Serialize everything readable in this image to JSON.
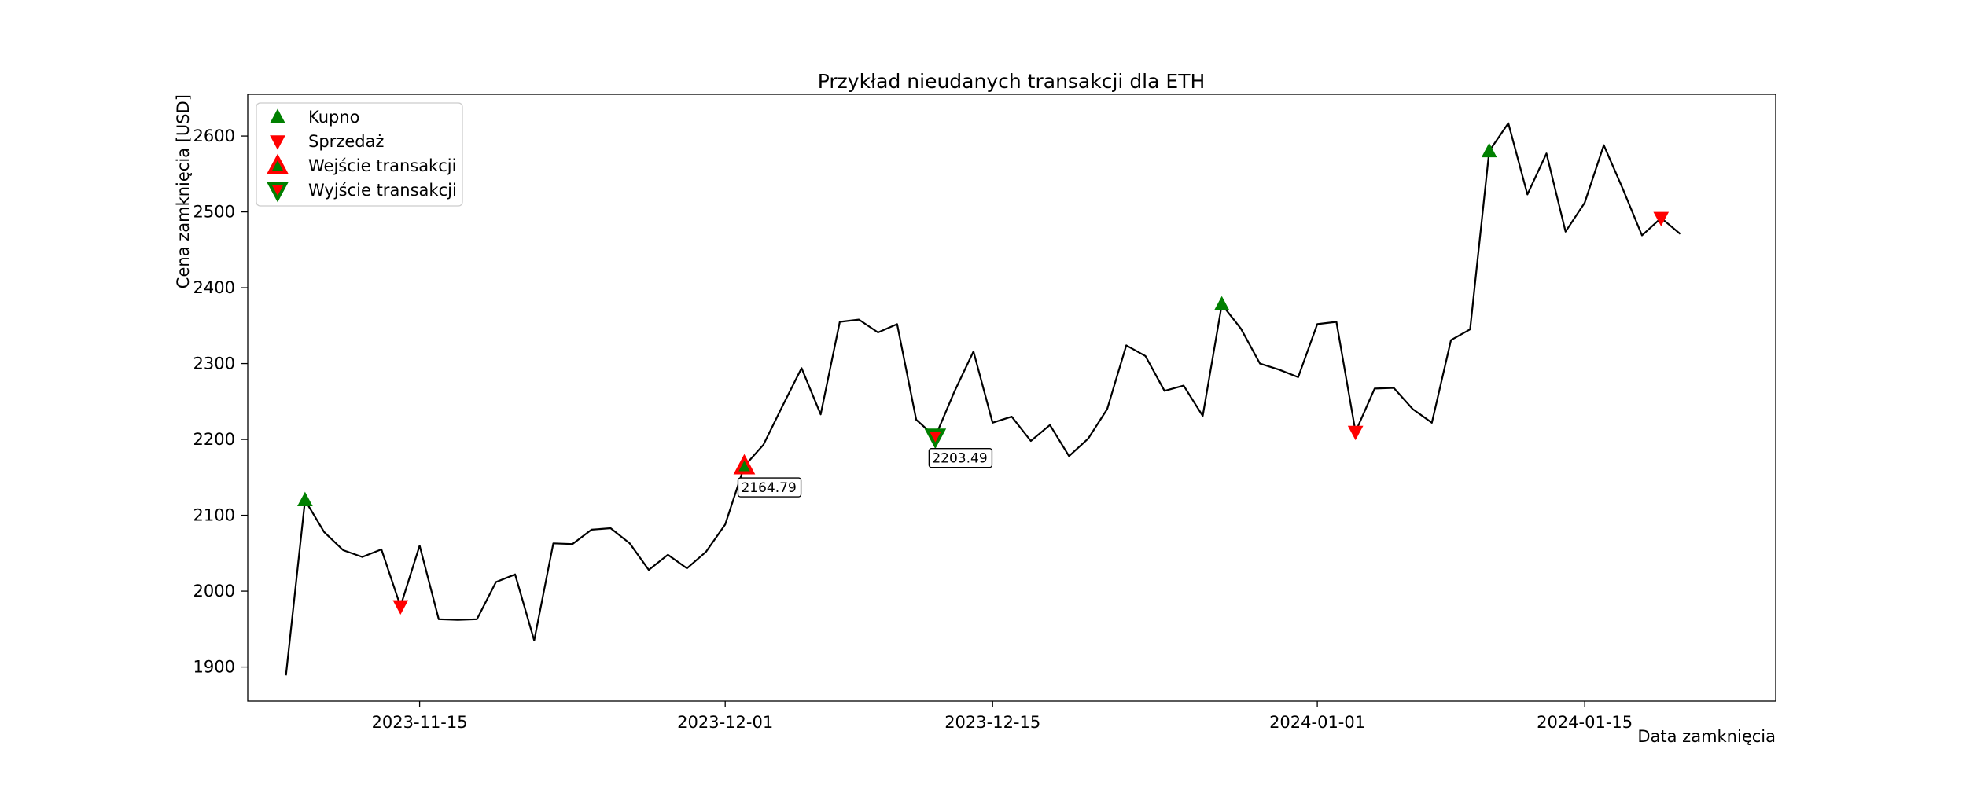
{
  "chart_data": {
    "type": "line",
    "title": "Przykład nieudanych transakcji dla ETH",
    "xlabel": "Data zamknięcia",
    "ylabel": "Cena zamknięcia [USD]",
    "x_start": "2023-11-08",
    "x_range": [
      "2023-11-06",
      "2024-01-25"
    ],
    "ylim": [
      1855,
      2655
    ],
    "grid": false,
    "legend_position": "top-left",
    "x_ticks": [
      "2023-11-15",
      "2023-12-01",
      "2023-12-15",
      "2024-01-01",
      "2024-01-15"
    ],
    "y_ticks": [
      1900,
      2000,
      2100,
      2200,
      2300,
      2400,
      2500,
      2600
    ],
    "series": [
      {
        "name": "",
        "color": "#000000",
        "values": [
          1889,
          2120,
          2078,
          2054,
          2045,
          2055,
          1980,
          2060,
          1963,
          1962,
          1963,
          2012,
          2022,
          1935,
          2063,
          2062,
          2081,
          2083,
          2063,
          2028,
          2048,
          2030,
          2052,
          2088,
          2164.79,
          2193,
          2244,
          2294,
          2233,
          2355,
          2358,
          2341,
          2352,
          2226,
          2203.49,
          2263,
          2316,
          2222,
          2230,
          2198,
          2219,
          2178,
          2201,
          2240,
          2324,
          2310,
          2264,
          2271,
          2231,
          2378,
          2346,
          2300,
          2292,
          2282,
          2352,
          2355,
          2210,
          2267,
          2268,
          2240,
          2222,
          2331,
          2345,
          2580,
          2617,
          2523,
          2577,
          2474,
          2512,
          2588,
          2530,
          2469,
          2492,
          2471
        ]
      }
    ],
    "markers": [
      {
        "kind": "Kupno",
        "date": "2023-11-09",
        "value": 2120
      },
      {
        "kind": "Sprzedaż",
        "date": "2023-11-14",
        "value": 1980
      },
      {
        "kind": "Wejście transakcji",
        "date": "2023-12-02",
        "value": 2164.79
      },
      {
        "kind": "Wyjście transakcji",
        "date": "2023-12-12",
        "value": 2203.49
      },
      {
        "kind": "Kupno",
        "date": "2023-12-27",
        "value": 2378
      },
      {
        "kind": "Sprzedaż",
        "date": "2024-01-03",
        "value": 2210
      },
      {
        "kind": "Kupno",
        "date": "2024-01-10",
        "value": 2580
      },
      {
        "kind": "Sprzedaż",
        "date": "2024-01-19",
        "value": 2492
      }
    ],
    "annotations": [
      {
        "date": "2023-12-02",
        "value": 2164.79,
        "text": "2164.79"
      },
      {
        "date": "2023-12-12",
        "value": 2203.49,
        "text": "2203.49"
      }
    ],
    "legend": [
      {
        "label": "Kupno",
        "marker": "triangle-up",
        "fill": "#008000",
        "edge": "#008000"
      },
      {
        "label": "Sprzedaż",
        "marker": "triangle-down",
        "fill": "#ff0000",
        "edge": "#ff0000"
      },
      {
        "label": "Wejście transakcji",
        "marker": "triangle-up",
        "fill": "#008000",
        "edge": "#ff0000"
      },
      {
        "label": "Wyjście transakcji",
        "marker": "triangle-down",
        "fill": "#ff0000",
        "edge": "#008000"
      }
    ]
  }
}
